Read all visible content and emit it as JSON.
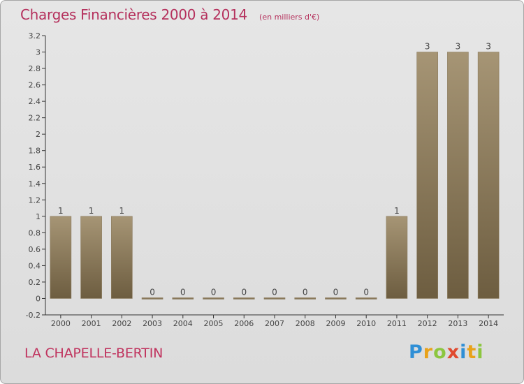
{
  "header": {
    "title": "Charges Financières 2000 à 2014",
    "subtitle": "(en milliers d'€)"
  },
  "footer": {
    "commune": "LA CHAPELLE-BERTIN",
    "brand_letters": [
      "P",
      "r",
      "o",
      "x",
      "i",
      "t",
      "i"
    ],
    "brand_colors": [
      "#2f8fd6",
      "#e8a21a",
      "#8cc63f",
      "#e04a2f",
      "#2f8fd6",
      "#e8a21a",
      "#8cc63f"
    ]
  },
  "chart_data": {
    "type": "bar",
    "title": "Charges Financières 2000 à 2014",
    "subtitle": "(en milliers d'€)",
    "categories": [
      "2000",
      "2001",
      "2002",
      "2003",
      "2004",
      "2005",
      "2006",
      "2007",
      "2008",
      "2009",
      "2010",
      "2011",
      "2012",
      "2013",
      "2014"
    ],
    "values": [
      1,
      1,
      1,
      0,
      0,
      0,
      0,
      0,
      0,
      0,
      0,
      1,
      3,
      3,
      3
    ],
    "value_labels": [
      "1",
      "1",
      "1",
      "0",
      "0",
      "0",
      "0",
      "0",
      "0",
      "0",
      "0",
      "1",
      "3",
      "3",
      "3"
    ],
    "ylim": [
      -0.2,
      3.2
    ],
    "yticks": [
      "-0.2",
      "0",
      "0.2",
      "0.4",
      "0.6",
      "0.8",
      "1",
      "1.2",
      "1.4",
      "1.6",
      "1.8",
      "2",
      "2.2",
      "2.4",
      "2.6",
      "2.8",
      "3",
      "3.2"
    ],
    "grid": false,
    "colors": {
      "bar_top": "#a69575",
      "bar_bottom": "#6d5d40",
      "axis": "#333333",
      "label": "#444444"
    }
  }
}
